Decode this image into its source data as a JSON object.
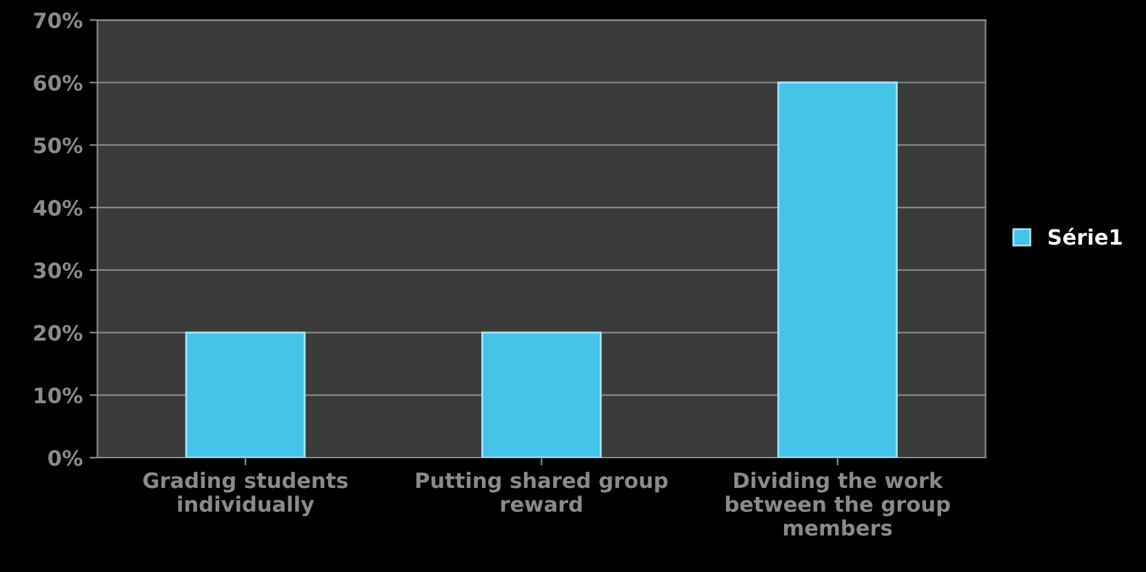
{
  "chart_data": {
    "type": "bar",
    "categories": [
      "Grading students\nindividually",
      "Putting shared group\nreward",
      "Dividing the work\nbetween the group\nmembers"
    ],
    "series": [
      {
        "name": "Série1",
        "color": "#45c3e8",
        "values": [
          20,
          20,
          60
        ]
      }
    ],
    "ylim": [
      0,
      70
    ],
    "yticks": [
      {
        "value": 0,
        "label": "0%"
      },
      {
        "value": 10,
        "label": "10%"
      },
      {
        "value": 20,
        "label": "20%"
      },
      {
        "value": 30,
        "label": "30%"
      },
      {
        "value": 40,
        "label": "40%"
      },
      {
        "value": 50,
        "label": "50%"
      },
      {
        "value": 60,
        "label": "60%"
      },
      {
        "value": 70,
        "label": "70%"
      }
    ],
    "grid": "y",
    "legend": "right"
  }
}
